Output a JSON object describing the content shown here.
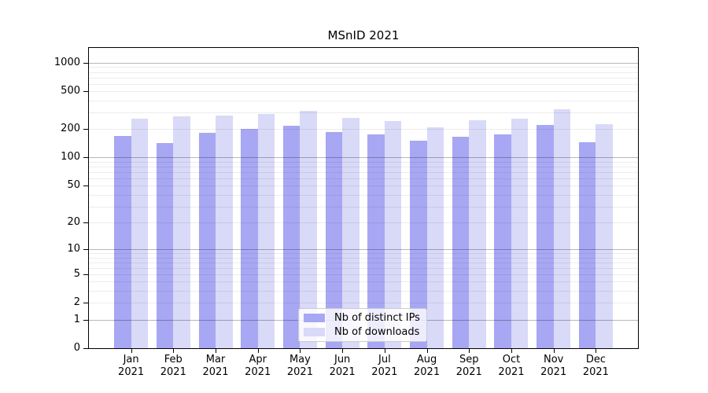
{
  "chart_data": {
    "type": "bar",
    "title": "MSnID 2021",
    "categories": [
      "Jan",
      "Feb",
      "Mar",
      "Apr",
      "May",
      "Jun",
      "Jul",
      "Aug",
      "Sep",
      "Oct",
      "Nov",
      "Dec"
    ],
    "x_tick_year": "2021",
    "series": [
      {
        "name": "Nb of distinct IPs",
        "color": "#a7a7f3",
        "values": [
          171,
          142,
          182,
          201,
          216,
          185,
          175,
          152,
          165,
          175,
          220,
          146
        ]
      },
      {
        "name": "Nb of downloads",
        "color": "#d9d9f8",
        "values": [
          259,
          273,
          277,
          291,
          310,
          263,
          244,
          210,
          246,
          259,
          322,
          225
        ]
      }
    ],
    "yscale": "log10(v+1)",
    "y_ticks": [
      0,
      1,
      2,
      5,
      10,
      20,
      50,
      100,
      200,
      500,
      1000
    ],
    "ylim": [
      0,
      1435
    ],
    "grid": "both",
    "legend_position": "lower center",
    "colors": {
      "major_grid": "rgba(0,0,0,0.28)",
      "minor_grid": "rgba(0,0,0,0.07)",
      "axis": "#000000",
      "background": "#ffffff"
    }
  }
}
